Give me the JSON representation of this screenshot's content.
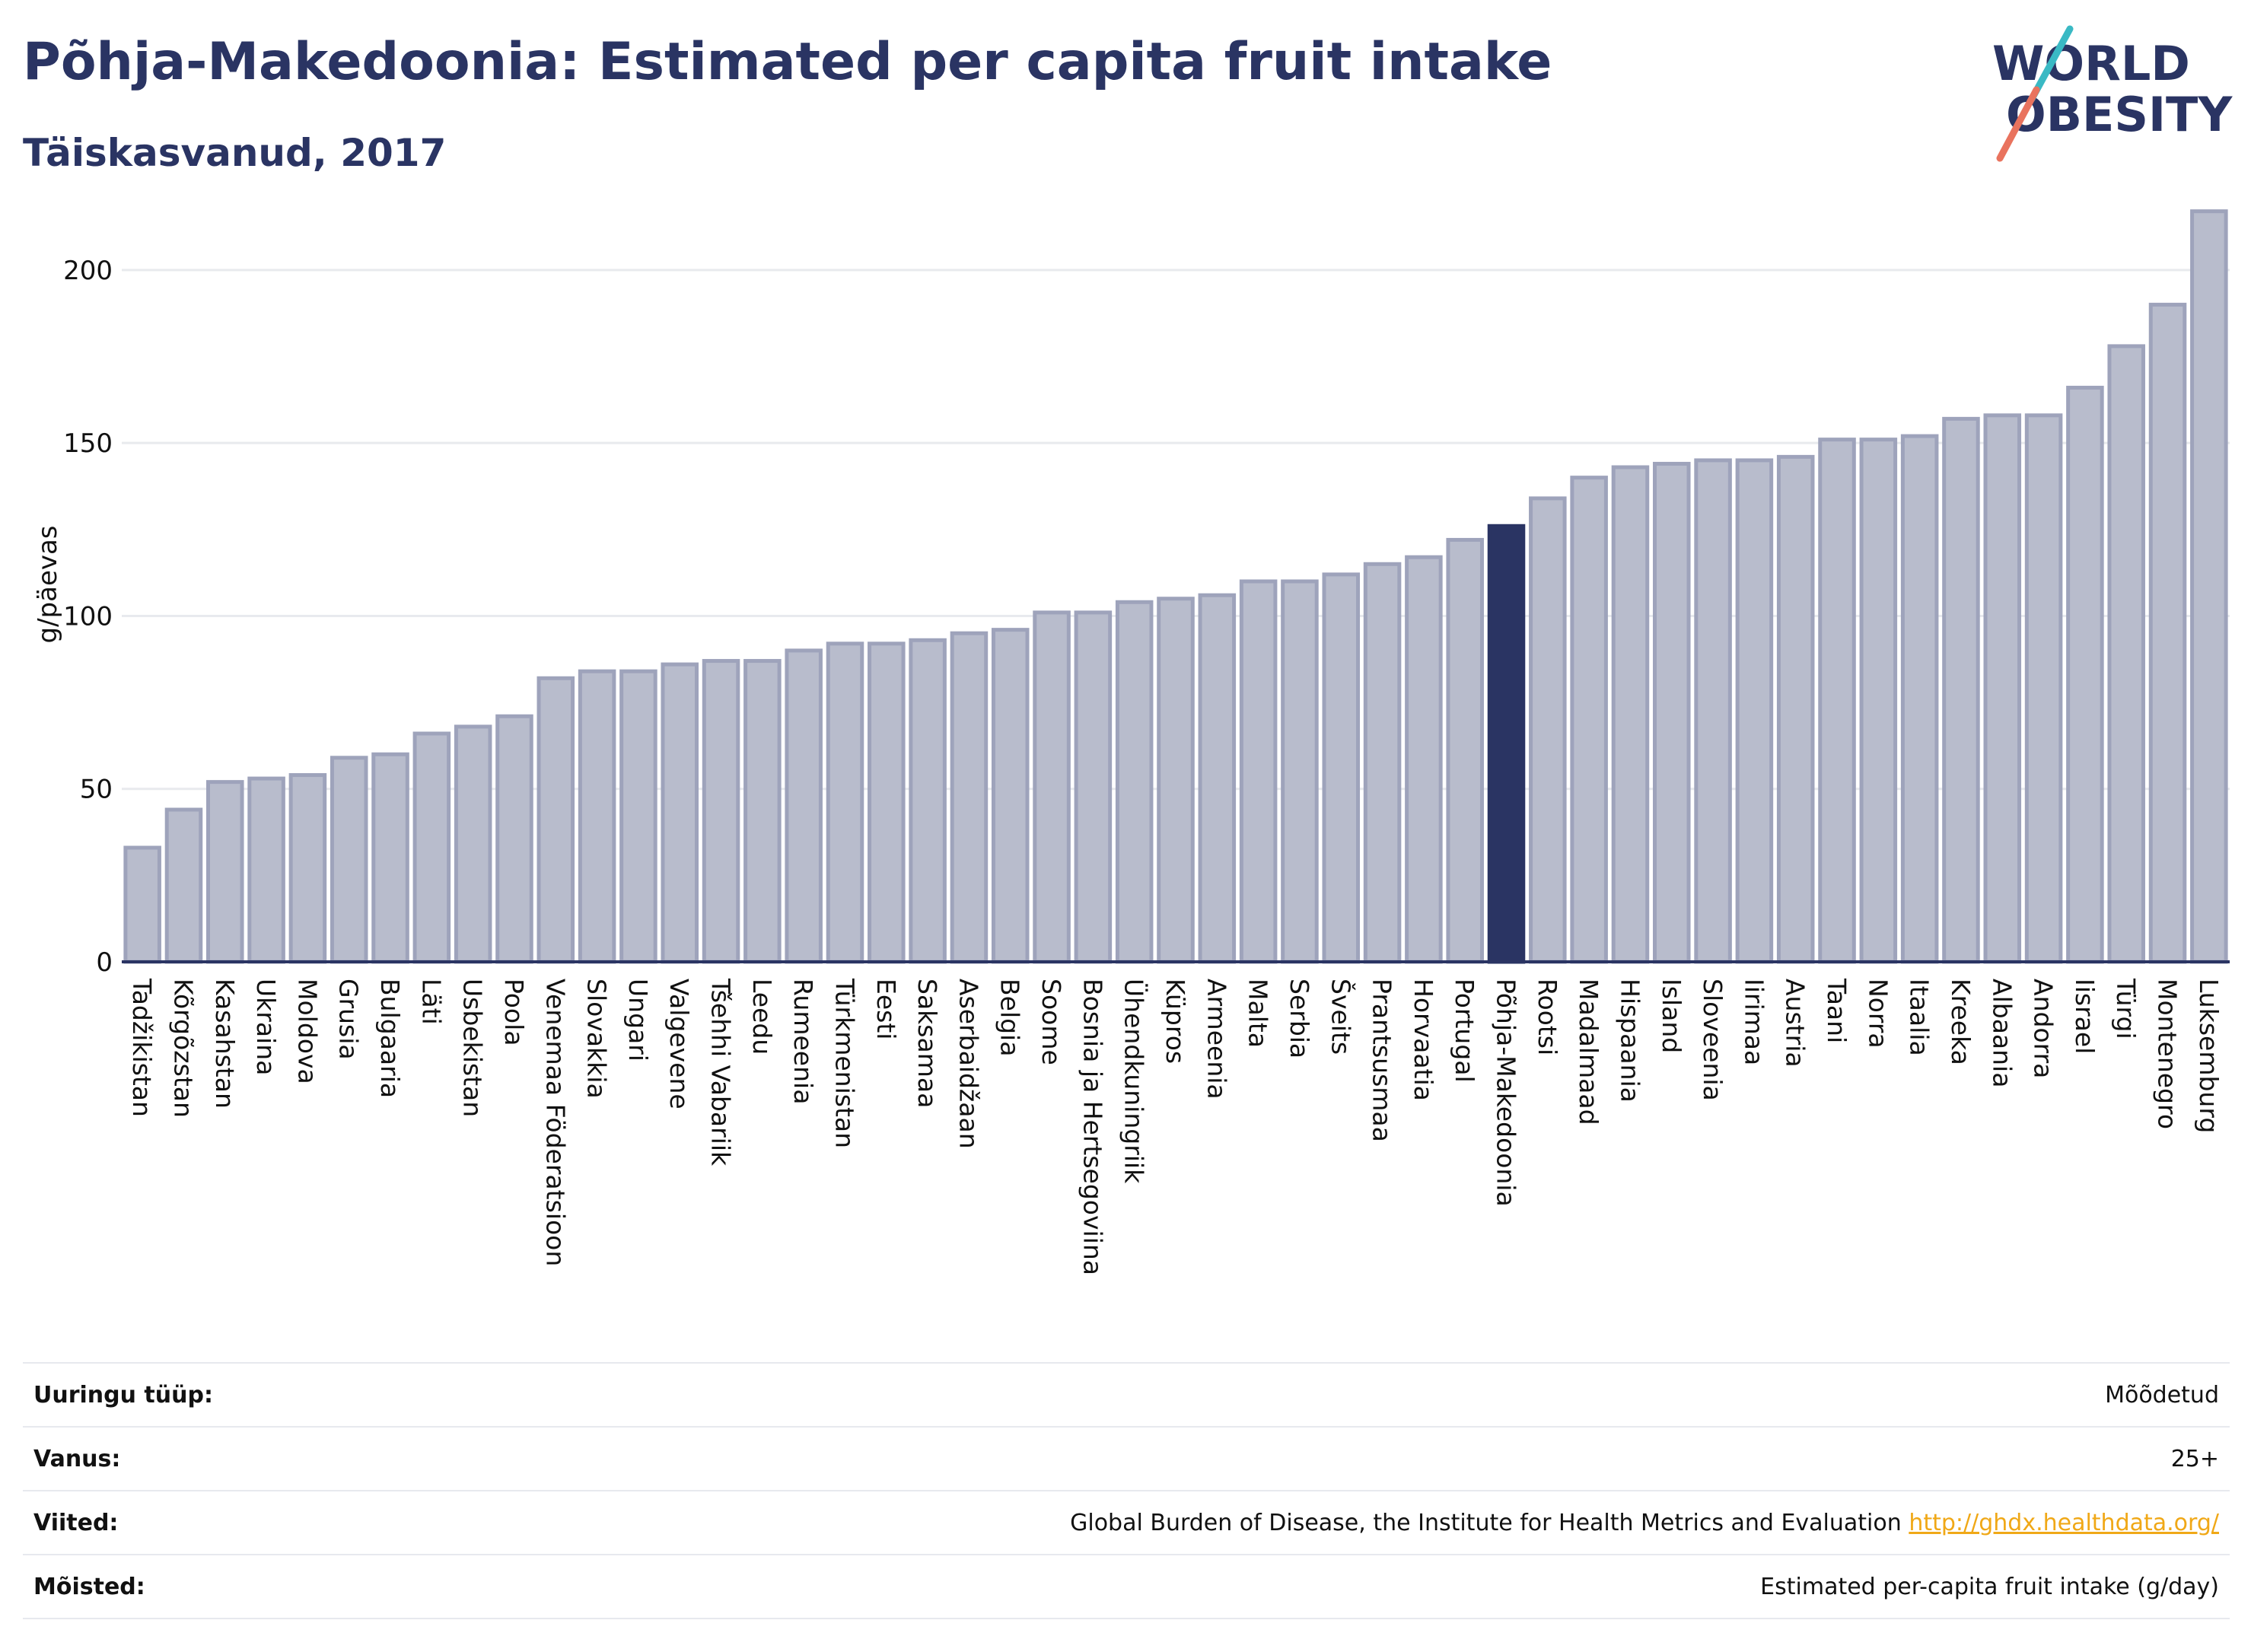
{
  "header": {
    "title": "Põhja-Makedoonia: Estimated per capita fruit intake",
    "subtitle": "Täiskasvanud, 2017"
  },
  "logo": {
    "line1": "WORLD",
    "line2": "OBESITY"
  },
  "colors": {
    "bar": "#b8bccc",
    "bar_stroke": "#9ea3bb",
    "highlight": "#2a3463",
    "grid": "#e8eaee",
    "axis": "#2a3463"
  },
  "chart_data": {
    "type": "bar",
    "title": "Põhja-Makedoonia: Estimated per capita fruit intake",
    "subtitle": "Täiskasvanud, 2017",
    "ylabel": "g/päevas",
    "xlabel": "",
    "ylim": [
      0,
      220
    ],
    "yticks": [
      0,
      50,
      100,
      150,
      200
    ],
    "grid": true,
    "highlight": "Põhja-Makedoonia",
    "categories": [
      "Tadžikistan",
      "Kõrgõzstan",
      "Kasahstan",
      "Ukraina",
      "Moldova",
      "Grusia",
      "Bulgaaria",
      "Läti",
      "Usbekistan",
      "Poola",
      "Venemaa Föderatsioon",
      "Slovakkia",
      "Ungari",
      "Valgevene",
      "Tšehhi Vabariik",
      "Leedu",
      "Rumeenia",
      "Türkmenistan",
      "Eesti",
      "Saksamaa",
      "Aserbaidžaan",
      "Belgia",
      "Soome",
      "Bosnia ja Hertsegoviina",
      "Ühendkuningriik",
      "Küpros",
      "Armeenia",
      "Malta",
      "Serbia",
      "Šveits",
      "Prantsusmaa",
      "Horvaatia",
      "Portugal",
      "Põhja-Makedoonia",
      "Rootsi",
      "Madalmaad",
      "Hispaania",
      "Island",
      "Sloveenia",
      "Iirimaa",
      "Austria",
      "Taani",
      "Norra",
      "Itaalia",
      "Kreeka",
      "Albaania",
      "Andorra",
      "Iisrael",
      "Türgi",
      "Montenegro",
      "Luksemburg"
    ],
    "values": [
      33,
      44,
      52,
      53,
      54,
      59,
      60,
      66,
      68,
      71,
      82,
      84,
      84,
      86,
      87,
      87,
      90,
      92,
      92,
      93,
      95,
      96,
      101,
      101,
      104,
      105,
      106,
      110,
      110,
      112,
      115,
      117,
      122,
      126,
      134,
      140,
      143,
      144,
      145,
      145,
      146,
      151,
      151,
      152,
      157,
      158,
      158,
      166,
      178,
      190,
      217
    ]
  },
  "meta": [
    {
      "label": "Uuringu tüüp:",
      "value": "Mõõdetud"
    },
    {
      "label": "Vanus:",
      "value": "25+"
    },
    {
      "label": "Viited:",
      "value": "Global Burden of Disease, the Institute for Health Metrics and Evaluation",
      "link": "http://ghdx.healthdata.org/"
    },
    {
      "label": "Mõisted:",
      "value": "Estimated per-capita fruit intake (g/day)"
    }
  ]
}
